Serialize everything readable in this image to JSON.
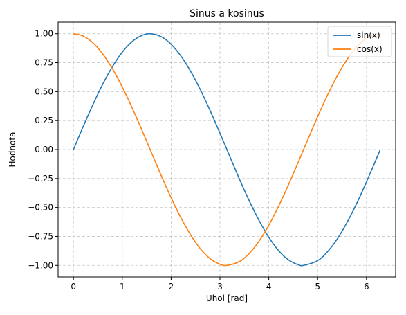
{
  "chart_data": {
    "type": "line",
    "title": "Sinus a kosinus",
    "xlabel": "Uhol [rad]",
    "ylabel": "Hodnota",
    "xlim": [
      -0.314,
      6.597
    ],
    "ylim": [
      -1.1,
      1.1
    ],
    "xticks": [
      0,
      1,
      2,
      3,
      4,
      5,
      6
    ],
    "xtick_labels": [
      "0",
      "1",
      "2",
      "3",
      "4",
      "5",
      "6"
    ],
    "yticks": [
      -1.0,
      -0.75,
      -0.5,
      -0.25,
      0.0,
      0.25,
      0.5,
      0.75,
      1.0
    ],
    "ytick_labels": [
      "−1.00",
      "−0.75",
      "−0.50",
      "−0.25",
      "0.00",
      "0.25",
      "0.50",
      "0.75",
      "1.00"
    ],
    "grid": true,
    "legend_position": "top-right",
    "x": [
      0.0,
      0.2,
      0.4,
      0.6,
      0.8,
      1.0,
      1.2,
      1.4,
      1.571,
      1.8,
      2.0,
      2.2,
      2.4,
      2.6,
      2.8,
      3.0,
      3.142,
      3.4,
      3.6,
      3.8,
      4.0,
      4.2,
      4.4,
      4.6,
      4.712,
      5.0,
      5.2,
      5.4,
      5.6,
      5.8,
      6.0,
      6.283
    ],
    "series": [
      {
        "name": "sin(x)",
        "color": "#1f77b4",
        "values": [
          0.0,
          0.199,
          0.389,
          0.565,
          0.717,
          0.841,
          0.932,
          0.985,
          1.0,
          0.974,
          0.909,
          0.808,
          0.675,
          0.516,
          0.335,
          0.141,
          0.0,
          -0.256,
          -0.443,
          -0.612,
          -0.757,
          -0.872,
          -0.952,
          -0.994,
          -1.0,
          -0.959,
          -0.883,
          -0.773,
          -0.631,
          -0.465,
          -0.279,
          0.0
        ]
      },
      {
        "name": "cos(x)",
        "color": "#ff7f0e",
        "values": [
          1.0,
          0.98,
          0.921,
          0.825,
          0.697,
          0.54,
          0.362,
          0.17,
          0.0,
          -0.227,
          -0.416,
          -0.589,
          -0.737,
          -0.857,
          -0.942,
          -0.99,
          -1.0,
          -0.967,
          -0.897,
          -0.791,
          -0.654,
          -0.49,
          -0.307,
          -0.112,
          0.0,
          0.284,
          0.469,
          0.635,
          0.776,
          0.886,
          0.96,
          1.0
        ]
      }
    ]
  }
}
